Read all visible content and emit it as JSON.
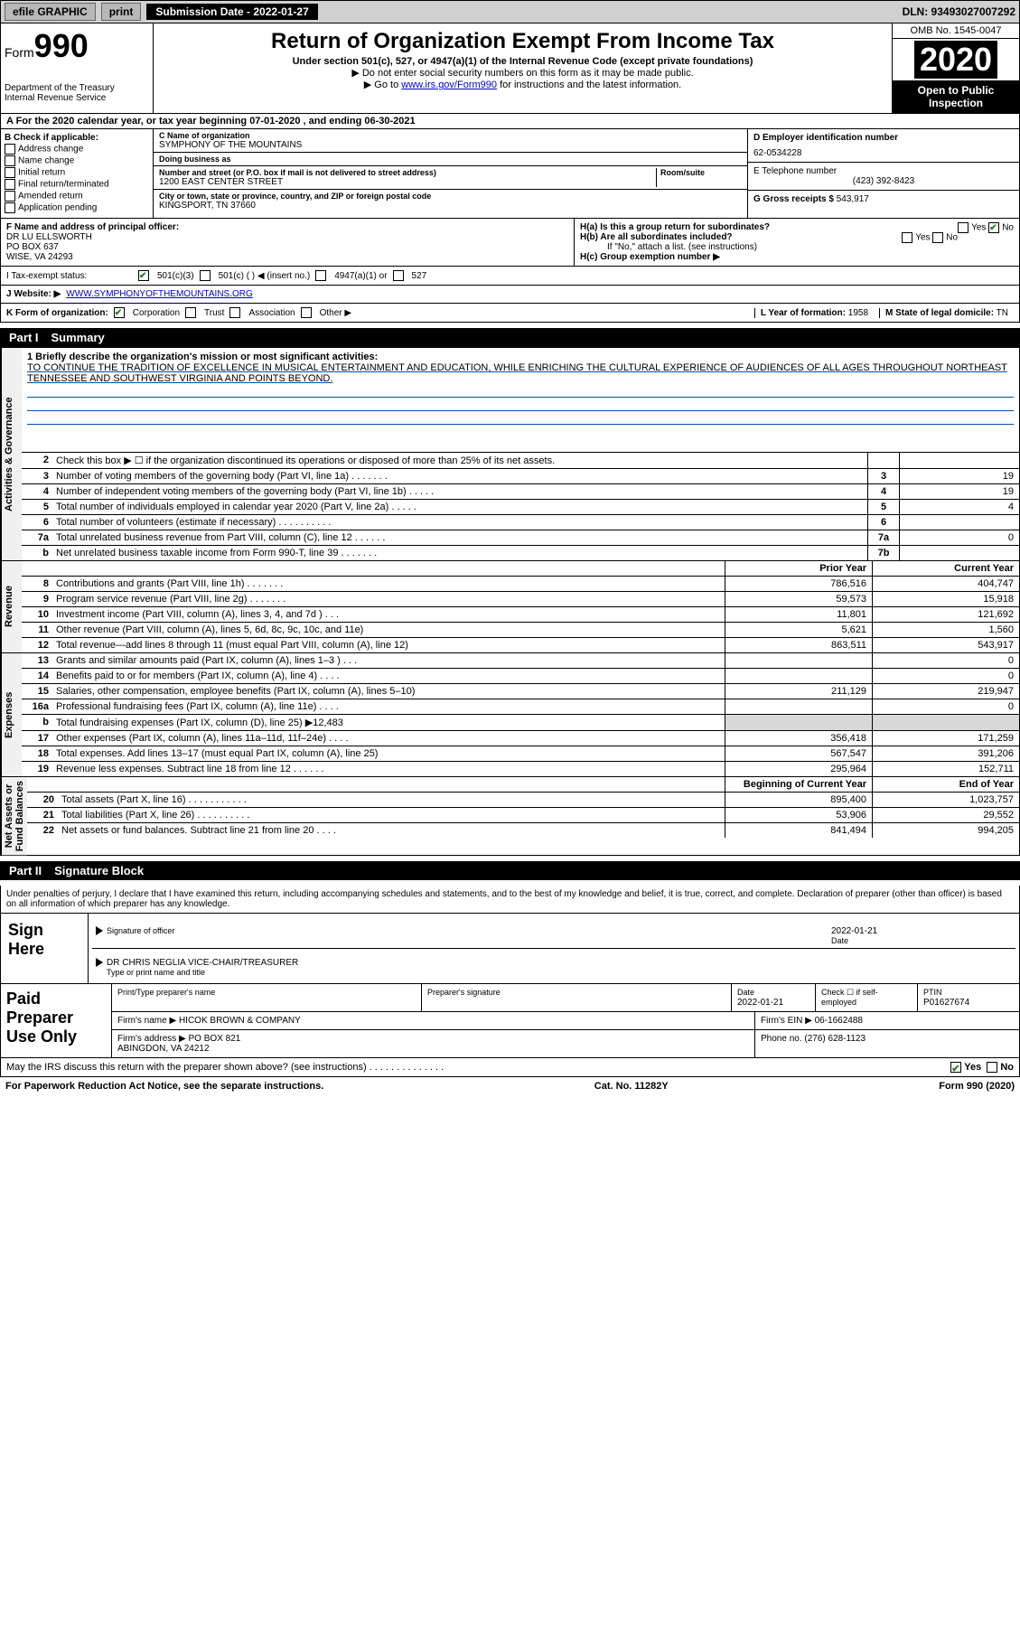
{
  "topbar": {
    "efile": "efile GRAPHIC",
    "print": "print",
    "sub_label": "Submission Date - 2022-01-27",
    "dln": "DLN: 93493027007292"
  },
  "header": {
    "form_label": "Form",
    "form_num": "990",
    "dept": "Department of the Treasury\nInternal Revenue Service",
    "title": "Return of Organization Exempt From Income Tax",
    "subtitle": "Under section 501(c), 527, or 4947(a)(1) of the Internal Revenue Code (except private foundations)",
    "note1": "▶ Do not enter social security numbers on this form as it may be made public.",
    "note2_pre": "▶ Go to ",
    "note2_link": "www.irs.gov/Form990",
    "note2_post": " for instructions and the latest information.",
    "omb": "OMB No. 1545-0047",
    "year": "2020",
    "open": "Open to Public Inspection"
  },
  "rowA": "A For the 2020 calendar year, or tax year beginning 07-01-2020   , and ending 06-30-2021",
  "colB": {
    "label": "B Check if applicable:",
    "opts": [
      "Address change",
      "Name change",
      "Initial return",
      "Final return/terminated",
      "Amended return",
      "Application pending"
    ]
  },
  "colC": {
    "name_lbl": "C Name of organization",
    "name": "SYMPHONY OF THE MOUNTAINS",
    "dba_lbl": "Doing business as",
    "dba": "",
    "addr_lbl": "Number and street (or P.O. box if mail is not delivered to street address)",
    "room_lbl": "Room/suite",
    "addr": "1200 EAST CENTER STREET",
    "city_lbl": "City or town, state or province, country, and ZIP or foreign postal code",
    "city": "KINGSPORT, TN  37660"
  },
  "colDE": {
    "d_lbl": "D Employer identification number",
    "d_val": "62-0534228",
    "e_lbl": "E Telephone number",
    "e_val": "(423) 392-8423",
    "g_lbl": "G Gross receipts $",
    "g_val": "543,917"
  },
  "rowF": {
    "f_lbl": "F Name and address of principal officer:",
    "f_val": "DR LU ELLSWORTH\nPO BOX 637\nWISE, VA  24293",
    "ha_lbl": "H(a) Is this a group return for subordinates?",
    "ha_yes": "Yes",
    "ha_no": "No",
    "hb_lbl": "H(b) Are all subordinates included?",
    "hb_note": "If \"No,\" attach a list. (see instructions)",
    "hc_lbl": "H(c) Group exemption number ▶"
  },
  "rowI": {
    "lbl": "I   Tax-exempt status:",
    "o1": "501(c)(3)",
    "o2": "501(c) (  ) ◀ (insert no.)",
    "o3": "4947(a)(1) or",
    "o4": "527"
  },
  "rowJ": {
    "lbl": "J   Website: ▶",
    "val": "WWW.SYMPHONYOFTHEMOUNTAINS.ORG"
  },
  "rowK": {
    "lbl": "K Form of organization:",
    "o1": "Corporation",
    "o2": "Trust",
    "o3": "Association",
    "o4": "Other ▶",
    "l_lbl": "L Year of formation:",
    "l_val": "1958",
    "m_lbl": "M State of legal domicile:",
    "m_val": "TN"
  },
  "part1": {
    "pt": "Part I",
    "title": "Summary"
  },
  "mission": {
    "lbl": "1   Briefly describe the organization's mission or most significant activities:",
    "text": "TO CONTINUE THE TRADITION OF EXCELLENCE IN MUSICAL ENTERTAINMENT AND EDUCATION, WHILE ENRICHING THE CULTURAL EXPERIENCE OF AUDIENCES OF ALL AGES THROUGHOUT NORTHEAST TENNESSEE AND SOUTHWEST VIRGINIA AND POINTS BEYOND."
  },
  "gov_lines": [
    {
      "n": "2",
      "d": "Check this box ▶ ☐ if the organization discontinued its operations or disposed of more than 25% of its net assets.",
      "box": "",
      "val": ""
    },
    {
      "n": "3",
      "d": "Number of voting members of the governing body (Part VI, line 1a)  .    .    .    .    .    .    .",
      "box": "3",
      "val": "19"
    },
    {
      "n": "4",
      "d": "Number of independent voting members of the governing body (Part VI, line 1b)  .    .    .    .    .",
      "box": "4",
      "val": "19"
    },
    {
      "n": "5",
      "d": "Total number of individuals employed in calendar year 2020 (Part V, line 2a)  .    .    .    .    .",
      "box": "5",
      "val": "4"
    },
    {
      "n": "6",
      "d": "Total number of volunteers (estimate if necessary)  .    .    .    .    .    .    .    .    .    .",
      "box": "6",
      "val": ""
    },
    {
      "n": "7a",
      "d": "Total unrelated business revenue from Part VIII, column (C), line 12  .    .    .    .    .    .",
      "box": "7a",
      "val": "0"
    },
    {
      "n": "b",
      "d": "Net unrelated business taxable income from Form 990-T, line 39  .    .    .    .    .    .    .",
      "box": "7b",
      "val": ""
    }
  ],
  "col_headers": {
    "prior": "Prior Year",
    "curr": "Current Year"
  },
  "revenue": [
    {
      "n": "8",
      "d": "Contributions and grants (Part VIII, line 1h)  .    .    .    .    .    .    .",
      "p": "786,516",
      "c": "404,747"
    },
    {
      "n": "9",
      "d": "Program service revenue (Part VIII, line 2g)  .    .    .    .    .    .    .",
      "p": "59,573",
      "c": "15,918"
    },
    {
      "n": "10",
      "d": "Investment income (Part VIII, column (A), lines 3, 4, and 7d )  .    .    .",
      "p": "11,801",
      "c": "121,692"
    },
    {
      "n": "11",
      "d": "Other revenue (Part VIII, column (A), lines 5, 6d, 8c, 9c, 10c, and 11e)",
      "p": "5,621",
      "c": "1,560"
    },
    {
      "n": "12",
      "d": "Total revenue—add lines 8 through 11 (must equal Part VIII, column (A), line 12)",
      "p": "863,511",
      "c": "543,917"
    }
  ],
  "expenses": [
    {
      "n": "13",
      "d": "Grants and similar amounts paid (Part IX, column (A), lines 1–3 )  .    .    .",
      "p": "",
      "c": "0"
    },
    {
      "n": "14",
      "d": "Benefits paid to or for members (Part IX, column (A), line 4)  .    .    .    .",
      "p": "",
      "c": "0"
    },
    {
      "n": "15",
      "d": "Salaries, other compensation, employee benefits (Part IX, column (A), lines 5–10)",
      "p": "211,129",
      "c": "219,947"
    },
    {
      "n": "16a",
      "d": "Professional fundraising fees (Part IX, column (A), line 11e)  .    .    .    .",
      "p": "",
      "c": "0"
    },
    {
      "n": "b",
      "d": "Total fundraising expenses (Part IX, column (D), line 25) ▶12,483",
      "p": "shade",
      "c": "shade"
    },
    {
      "n": "17",
      "d": "Other expenses (Part IX, column (A), lines 11a–11d, 11f–24e)  .    .    .    .",
      "p": "356,418",
      "c": "171,259"
    },
    {
      "n": "18",
      "d": "Total expenses. Add lines 13–17 (must equal Part IX, column (A), line 25)",
      "p": "567,547",
      "c": "391,206"
    },
    {
      "n": "19",
      "d": "Revenue less expenses. Subtract line 18 from line 12  .    .    .    .    .    .",
      "p": "295,964",
      "c": "152,711"
    }
  ],
  "na_headers": {
    "prior": "Beginning of Current Year",
    "curr": "End of Year"
  },
  "netassets": [
    {
      "n": "20",
      "d": "Total assets (Part X, line 16)  .    .    .    .    .    .    .    .    .    .    .",
      "p": "895,400",
      "c": "1,023,757"
    },
    {
      "n": "21",
      "d": "Total liabilities (Part X, line 26)  .    .    .    .    .    .    .    .    .    .",
      "p": "53,906",
      "c": "29,552"
    },
    {
      "n": "22",
      "d": "Net assets or fund balances. Subtract line 21 from line 20  .    .    .    .",
      "p": "841,494",
      "c": "994,205"
    }
  ],
  "part2": {
    "pt": "Part II",
    "title": "Signature Block"
  },
  "sig": {
    "declare": "Under penalties of perjury, I declare that I have examined this return, including accompanying schedules and statements, and to the best of my knowledge and belief, it is true, correct, and complete. Declaration of preparer (other than officer) is based on all information of which preparer has any knowledge.",
    "sign_here": "Sign Here",
    "sig_officer": "Signature of officer",
    "date": "2022-01-21",
    "date_lbl": "Date",
    "name": "DR CHRIS NEGLIA  VICE-CHAIR/TREASURER",
    "name_lbl": "Type or print name and title"
  },
  "paid": {
    "title": "Paid Preparer Use Only",
    "h1": "Print/Type preparer's name",
    "h2": "Preparer's signature",
    "h3": "Date",
    "h3v": "2022-01-21",
    "h4": "Check ☐ if self-employed",
    "h5": "PTIN",
    "h5v": "P01627674",
    "firm_lbl": "Firm's name   ▶",
    "firm": "HICOK BROWN & COMPANY",
    "ein_lbl": "Firm's EIN ▶",
    "ein": "06-1662488",
    "addr_lbl": "Firm's address ▶",
    "addr": "PO BOX 821\n                        ABINGDON, VA  24212",
    "phone_lbl": "Phone no.",
    "phone": "(276) 628-1123"
  },
  "discuss": {
    "q": "May the IRS discuss this return with the preparer shown above? (see instructions)  .     .     .     .     .     .     .     .     .     .     .     .     .     .",
    "yes": "Yes",
    "no": "No"
  },
  "footer": {
    "left": "For Paperwork Reduction Act Notice, see the separate instructions.",
    "mid": "Cat. No. 11282Y",
    "right": "Form 990 (2020)"
  },
  "side_labels": {
    "gov": "Activities & Governance",
    "rev": "Revenue",
    "exp": "Expenses",
    "na": "Net Assets or\nFund Balances"
  }
}
